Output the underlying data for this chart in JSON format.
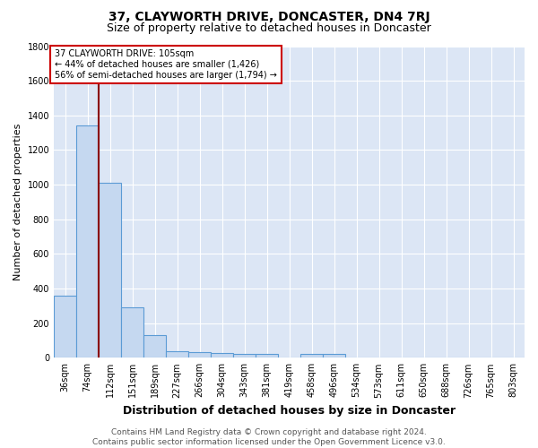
{
  "title": "37, CLAYWORTH DRIVE, DONCASTER, DN4 7RJ",
  "subtitle": "Size of property relative to detached houses in Doncaster",
  "xlabel": "Distribution of detached houses by size in Doncaster",
  "ylabel": "Number of detached properties",
  "categories": [
    "36sqm",
    "74sqm",
    "112sqm",
    "151sqm",
    "189sqm",
    "227sqm",
    "266sqm",
    "304sqm",
    "343sqm",
    "381sqm",
    "419sqm",
    "458sqm",
    "496sqm",
    "534sqm",
    "573sqm",
    "611sqm",
    "650sqm",
    "688sqm",
    "726sqm",
    "765sqm",
    "803sqm"
  ],
  "values": [
    360,
    1340,
    1010,
    290,
    130,
    40,
    35,
    30,
    20,
    20,
    0,
    20,
    20,
    0,
    0,
    0,
    0,
    0,
    0,
    0,
    0
  ],
  "bar_color": "#c5d8f0",
  "bar_edge_color": "#5b9bd5",
  "background_color": "#dce6f5",
  "grid_color": "#ffffff",
  "property_line_x": 1.5,
  "property_line_color": "#8b0000",
  "annotation_text": "37 CLAYWORTH DRIVE: 105sqm\n← 44% of detached houses are smaller (1,426)\n56% of semi-detached houses are larger (1,794) →",
  "annotation_box_color": "#ffffff",
  "annotation_box_edge_color": "#cc0000",
  "ylim": [
    0,
    1800
  ],
  "yticks": [
    0,
    200,
    400,
    600,
    800,
    1000,
    1200,
    1400,
    1600,
    1800
  ],
  "footer_text": "Contains HM Land Registry data © Crown copyright and database right 2024.\nContains public sector information licensed under the Open Government Licence v3.0.",
  "title_fontsize": 10,
  "subtitle_fontsize": 9,
  "ylabel_fontsize": 8,
  "xlabel_fontsize": 9,
  "tick_fontsize": 7,
  "footer_fontsize": 6.5
}
